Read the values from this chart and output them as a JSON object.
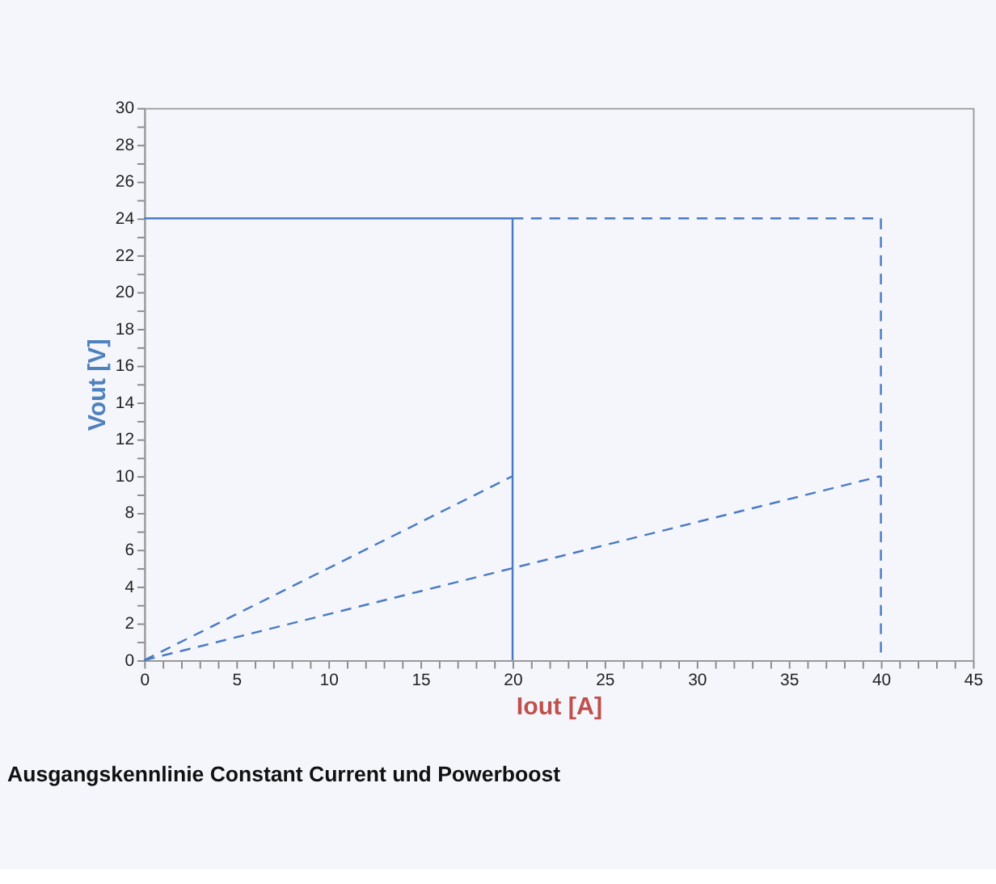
{
  "chart_data": {
    "type": "line",
    "xlabel": "Iout [A]",
    "ylabel": "Vout [V]",
    "annotations": [
      "Ausgangskennlinie Constant Current und Powerboost"
    ],
    "series": [
      {
        "color": "#4a7bc4",
        "line_style": "solid",
        "x": [
          0,
          20,
          20
        ],
        "values": [
          24,
          24,
          0
        ]
      },
      {
        "color": "#4a7bc4",
        "line_style": "dashed",
        "x": [
          20,
          40,
          40
        ],
        "values": [
          24,
          24,
          0
        ]
      },
      {
        "color": "#4a7bc4",
        "line_style": "dashed",
        "x": [
          0,
          20
        ],
        "values": [
          0,
          10
        ]
      },
      {
        "color": "#4a7bc4",
        "line_style": "dashed",
        "x": [
          0,
          40
        ],
        "values": [
          0,
          10
        ]
      }
    ],
    "xlim": [
      0,
      45
    ],
    "ylim": [
      0,
      30
    ],
    "xticks": [
      0,
      {
        "value": 1,
        "label": null
      },
      {
        "value": 2,
        "label": null
      },
      {
        "value": 3,
        "label": null
      },
      {
        "value": 4,
        "label": null
      },
      5,
      {
        "value": 6,
        "label": null
      },
      {
        "value": 7,
        "label": null
      },
      {
        "value": 8,
        "label": null
      },
      {
        "value": 9,
        "label": null
      },
      10,
      {
        "value": 11,
        "label": null
      },
      {
        "value": 12,
        "label": null
      },
      {
        "value": 13,
        "label": null
      },
      {
        "value": 14,
        "label": null
      },
      15,
      {
        "value": 16,
        "label": null
      },
      {
        "value": 17,
        "label": null
      },
      {
        "value": 18,
        "label": null
      },
      {
        "value": 19,
        "label": null
      },
      20,
      {
        "value": 21,
        "label": null
      },
      {
        "value": 22,
        "label": null
      },
      {
        "value": 23,
        "label": null
      },
      {
        "value": 24,
        "label": null
      },
      25,
      {
        "value": 26,
        "label": null
      },
      {
        "value": 27,
        "label": null
      },
      {
        "value": 28,
        "label": null
      },
      {
        "value": 29,
        "label": null
      },
      30,
      {
        "value": 31,
        "label": null
      },
      {
        "value": 32,
        "label": null
      },
      {
        "value": 33,
        "label": null
      },
      {
        "value": 34,
        "label": null
      },
      35,
      {
        "value": 36,
        "label": null
      },
      {
        "value": 37,
        "label": null
      },
      {
        "value": 38,
        "label": null
      },
      {
        "value": 39,
        "label": null
      },
      40,
      {
        "value": 41,
        "label": null
      },
      {
        "value": 42,
        "label": null
      },
      {
        "value": 43,
        "label": null
      },
      {
        "value": 44,
        "label": null
      },
      45
    ],
    "yticks": [
      0,
      {
        "value": 1,
        "label": null
      },
      2,
      {
        "value": 3,
        "label": null
      },
      4,
      {
        "value": 5,
        "label": null
      },
      6,
      {
        "value": 7,
        "label": null
      },
      8,
      {
        "value": 9,
        "label": null
      },
      10,
      {
        "value": 11,
        "label": null
      },
      12,
      {
        "value": 13,
        "label": null
      },
      14,
      {
        "value": 15,
        "label": null
      },
      16,
      {
        "value": 17,
        "label": null
      },
      18,
      {
        "value": 19,
        "label": null
      },
      20,
      {
        "value": 21,
        "label": null
      },
      22,
      {
        "value": 23,
        "label": null
      },
      24,
      {
        "value": 25,
        "label": null
      },
      26,
      {
        "value": 27,
        "label": null
      },
      28,
      {
        "value": 29,
        "label": null
      },
      30
    ],
    "grid": false,
    "legend": false
  }
}
